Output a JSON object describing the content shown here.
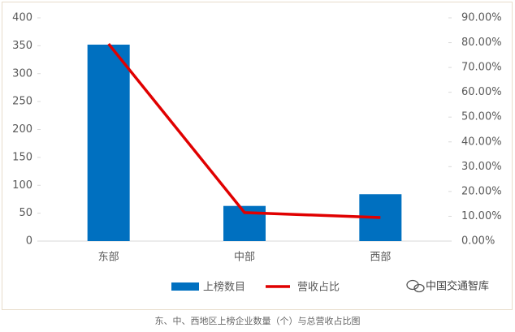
{
  "chart_data": {
    "type": "bar_line",
    "categories": [
      "东部",
      "中部",
      "西部"
    ],
    "series": [
      {
        "name": "上榜数目",
        "color": "#0070c0",
        "values": [
          352,
          63,
          84
        ]
      },
      {
        "name": "营收占比",
        "color": "#e00000",
        "values": [
          79.5,
          11.5,
          9.5
        ],
        "axis": "y2"
      }
    ],
    "ylim": [
      0,
      400
    ],
    "yticks": [
      0,
      50,
      100,
      150,
      200,
      250,
      300,
      350,
      400
    ],
    "y2lim": [
      0,
      90
    ],
    "y2ticks": [
      {
        "value": 0,
        "label": "0.00%"
      },
      {
        "value": 10,
        "label": "10.00%"
      },
      {
        "value": 20,
        "label": "20.00%"
      },
      {
        "value": 30,
        "label": "30.00%"
      },
      {
        "value": 40,
        "label": "40.00%"
      },
      {
        "value": 50,
        "label": "50.00%"
      },
      {
        "value": 60,
        "label": "60.00%"
      },
      {
        "value": 70,
        "label": "70.00%"
      },
      {
        "value": 80,
        "label": "80.00%"
      },
      {
        "value": 90,
        "label": "90.00%"
      }
    ],
    "watermark": "中国交通智库",
    "caption": "东、中、西地区上榜企业数量（个）与总营收占比图"
  }
}
